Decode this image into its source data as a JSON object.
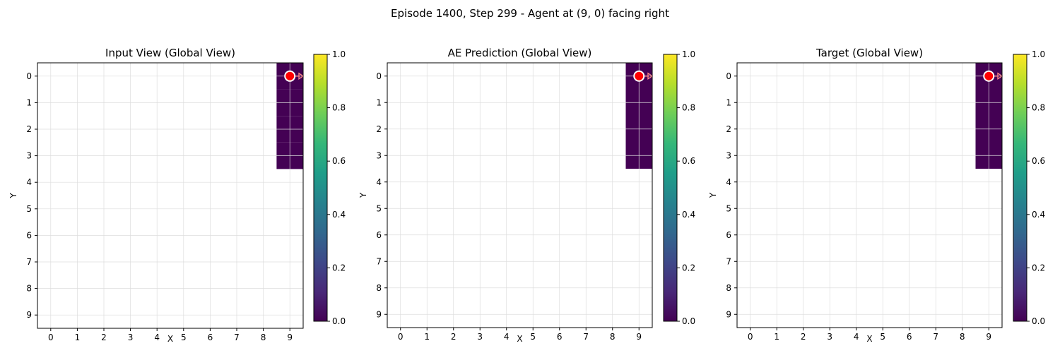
{
  "figure": {
    "suptitle": "Episode 1400, Step 299 - Agent at (9, 0) facing right"
  },
  "colormap": {
    "name": "viridis",
    "stops": [
      "#440154",
      "#482878",
      "#3e4989",
      "#31688e",
      "#26828e",
      "#1f9e89",
      "#35b779",
      "#6ece58",
      "#b5de2b",
      "#fde725"
    ],
    "background": "#ffffff",
    "grid": "#dddddd"
  },
  "agent": {
    "marker_fill": "#ff0000",
    "marker_edge": "#ffffff",
    "arrow_color": "#ff8888"
  },
  "chart_data": [
    {
      "type": "heatmap",
      "title": "Input View (Global View)",
      "xlabel": "X",
      "ylabel": "Y",
      "xlim": [
        -0.5,
        9.5
      ],
      "ylim": [
        9.5,
        -0.5
      ],
      "x_ticks": [
        0,
        1,
        2,
        3,
        4,
        5,
        6,
        7,
        8,
        9
      ],
      "y_ticks": [
        0,
        1,
        2,
        3,
        4,
        5,
        6,
        7,
        8,
        9
      ],
      "grid": true,
      "cells": [
        {
          "x": 9,
          "y": 0,
          "value": 0.0
        },
        {
          "x": 9,
          "y": 1,
          "value": 0.0
        },
        {
          "x": 9,
          "y": 2,
          "value": 0.0
        },
        {
          "x": 9,
          "y": 3,
          "value": 0.0
        }
      ],
      "agent": {
        "x": 9,
        "y": 0,
        "facing": "right"
      },
      "colorbar": {
        "range": [
          0.0,
          1.0
        ],
        "ticks": [
          "0.0",
          "0.2",
          "0.4",
          "0.6",
          "0.8",
          "1.0"
        ]
      }
    },
    {
      "type": "heatmap",
      "title": "AE Prediction (Global View)",
      "xlabel": "X",
      "ylabel": "Y",
      "xlim": [
        -0.5,
        9.5
      ],
      "ylim": [
        9.5,
        -0.5
      ],
      "x_ticks": [
        0,
        1,
        2,
        3,
        4,
        5,
        6,
        7,
        8,
        9
      ],
      "y_ticks": [
        0,
        1,
        2,
        3,
        4,
        5,
        6,
        7,
        8,
        9
      ],
      "grid": true,
      "cells": [
        {
          "x": 9,
          "y": 0,
          "value": 0.0
        },
        {
          "x": 9,
          "y": 1,
          "value": 0.0
        },
        {
          "x": 9,
          "y": 2,
          "value": 0.0
        },
        {
          "x": 9,
          "y": 3,
          "value": 0.0
        }
      ],
      "agent": {
        "x": 9,
        "y": 0,
        "facing": "right"
      },
      "colorbar": {
        "range": [
          0.0,
          1.0
        ],
        "ticks": [
          "0.0",
          "0.2",
          "0.4",
          "0.6",
          "0.8",
          "1.0"
        ]
      }
    },
    {
      "type": "heatmap",
      "title": "Target (Global View)",
      "xlabel": "X",
      "ylabel": "Y",
      "xlim": [
        -0.5,
        9.5
      ],
      "ylim": [
        9.5,
        -0.5
      ],
      "x_ticks": [
        0,
        1,
        2,
        3,
        4,
        5,
        6,
        7,
        8,
        9
      ],
      "y_ticks": [
        0,
        1,
        2,
        3,
        4,
        5,
        6,
        7,
        8,
        9
      ],
      "grid": true,
      "cells": [
        {
          "x": 9,
          "y": 0,
          "value": 0.0
        },
        {
          "x": 9,
          "y": 1,
          "value": 0.0
        },
        {
          "x": 9,
          "y": 2,
          "value": 0.0
        },
        {
          "x": 9,
          "y": 3,
          "value": 0.0
        }
      ],
      "agent": {
        "x": 9,
        "y": 0,
        "facing": "right"
      },
      "colorbar": {
        "range": [
          0.0,
          1.0
        ],
        "ticks": [
          "0.0",
          "0.2",
          "0.4",
          "0.6",
          "0.8",
          "1.0"
        ]
      }
    }
  ]
}
